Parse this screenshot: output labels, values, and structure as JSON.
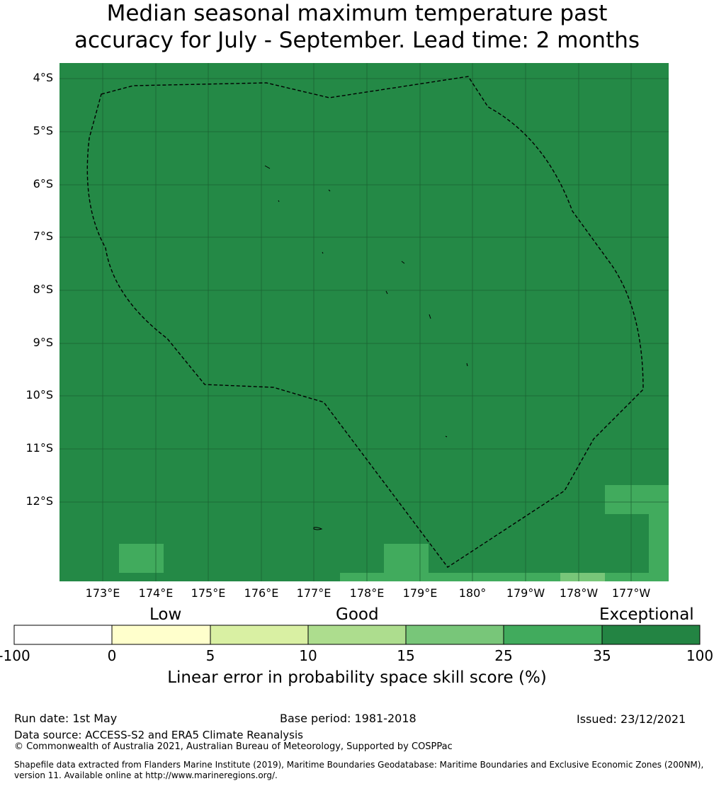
{
  "title": {
    "line1": "Median seasonal maximum temperature past",
    "line2": "accuracy for July - September. Lead time: 2 months"
  },
  "map": {
    "background_color": "#248946",
    "lat_labels": [
      "4°S",
      "5°S",
      "6°S",
      "7°S",
      "8°S",
      "9°S",
      "10°S",
      "11°S",
      "12°S"
    ],
    "lon_labels": [
      "173°E",
      "174°E",
      "175°E",
      "176°E",
      "177°E",
      "178°E",
      "179°E",
      "180°",
      "179°W",
      "178°W",
      "177°W"
    ],
    "boundary_style": "dashed black line (EEZ)"
  },
  "colorbar": {
    "category_labels": [
      "Low",
      "Good",
      "Exceptional"
    ],
    "tick_labels": [
      "-100",
      "0",
      "5",
      "10",
      "15",
      "25",
      "35",
      "100"
    ],
    "colors": [
      "#ffffff",
      "#ffffcc",
      "#d9f0a3",
      "#addd8e",
      "#78c679",
      "#41ab5d",
      "#238443"
    ],
    "caption": "Linear error in probability space skill score (%)"
  },
  "footer": {
    "run_date": "Run date: 1st May",
    "base_period": "Base period: 1981-2018",
    "issued": "Issued: 23/12/2021",
    "data_source": "Data source: ACCESS-S2 and ERA5 Climate Reanalysis",
    "copyright": "© Commonwealth of Australia 2021, Australian Bureau of Meteorology, Supported by COSPPac",
    "shapefile_line1": "Shapefile data extracted from Flanders Marine Institute (2019), Maritime Boundaries Geodatabase: Maritime Boundaries and Exclusive Economic Zones (200NM),",
    "shapefile_line2": "version 11. Available online at http://www.marineregions.org/."
  }
}
